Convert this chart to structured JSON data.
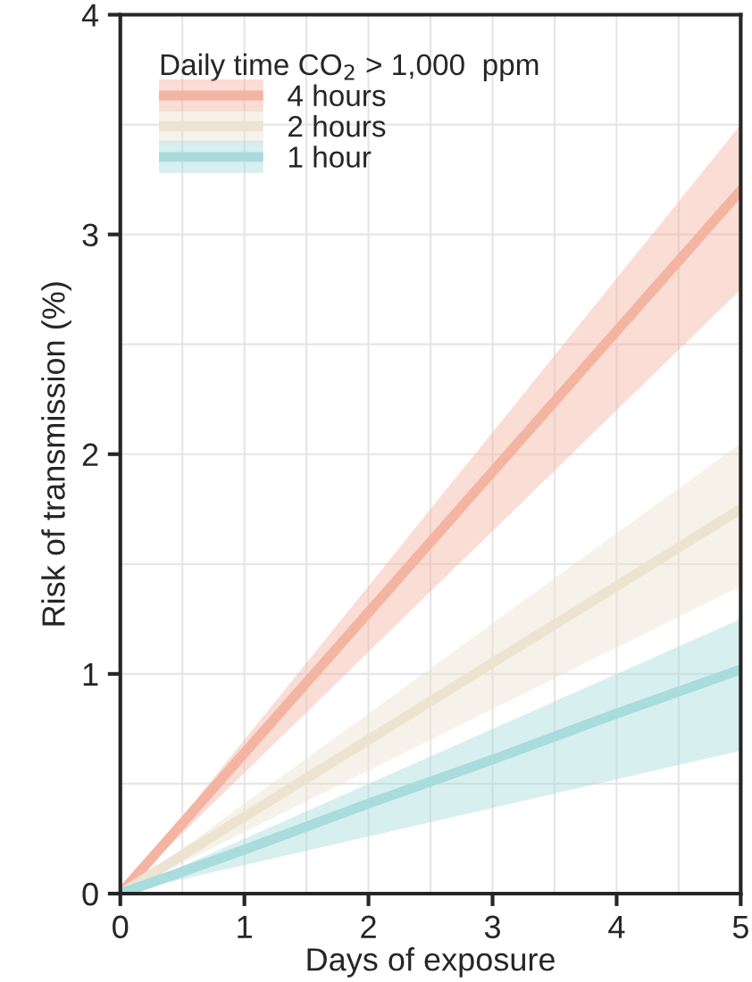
{
  "chart_data": {
    "type": "line",
    "xlabel": "Days of exposure",
    "ylabel": "Risk of transmission (%)",
    "legend_title": "Daily time CO$_{2}$ > 1,000  ppm",
    "x": [
      0,
      1,
      2,
      3,
      4,
      5
    ],
    "series": [
      {
        "name": "4 hours",
        "color": "#f4b4a2",
        "values": [
          0,
          0.64,
          1.28,
          1.92,
          2.56,
          3.2
        ],
        "lower": [
          0,
          0.55,
          1.1,
          1.65,
          2.2,
          2.75
        ],
        "upper": [
          0,
          0.7,
          1.4,
          2.1,
          2.8,
          3.5
        ]
      },
      {
        "name": "2 hours",
        "color": "#ece3d1",
        "values": [
          0,
          0.35,
          0.7,
          1.05,
          1.4,
          1.75
        ],
        "lower": [
          0,
          0.28,
          0.56,
          0.84,
          1.12,
          1.4
        ],
        "upper": [
          0,
          0.41,
          0.82,
          1.23,
          1.64,
          2.05
        ]
      },
      {
        "name": "1 hour",
        "color": "#a9dcdc",
        "values": [
          0,
          0.2,
          0.41,
          0.61,
          0.82,
          1.02
        ],
        "lower": [
          0,
          0.13,
          0.26,
          0.39,
          0.52,
          0.65
        ],
        "upper": [
          0,
          0.25,
          0.5,
          0.75,
          1.0,
          1.25
        ]
      }
    ],
    "xlim": [
      0,
      5
    ],
    "ylim": [
      0,
      4
    ],
    "xticks": [
      0,
      1,
      2,
      3,
      4,
      5
    ],
    "yticks": [
      0,
      1,
      2,
      3,
      4
    ],
    "grid": true,
    "legend": "top left",
    "line_style": "solid",
    "marker": "none"
  }
}
